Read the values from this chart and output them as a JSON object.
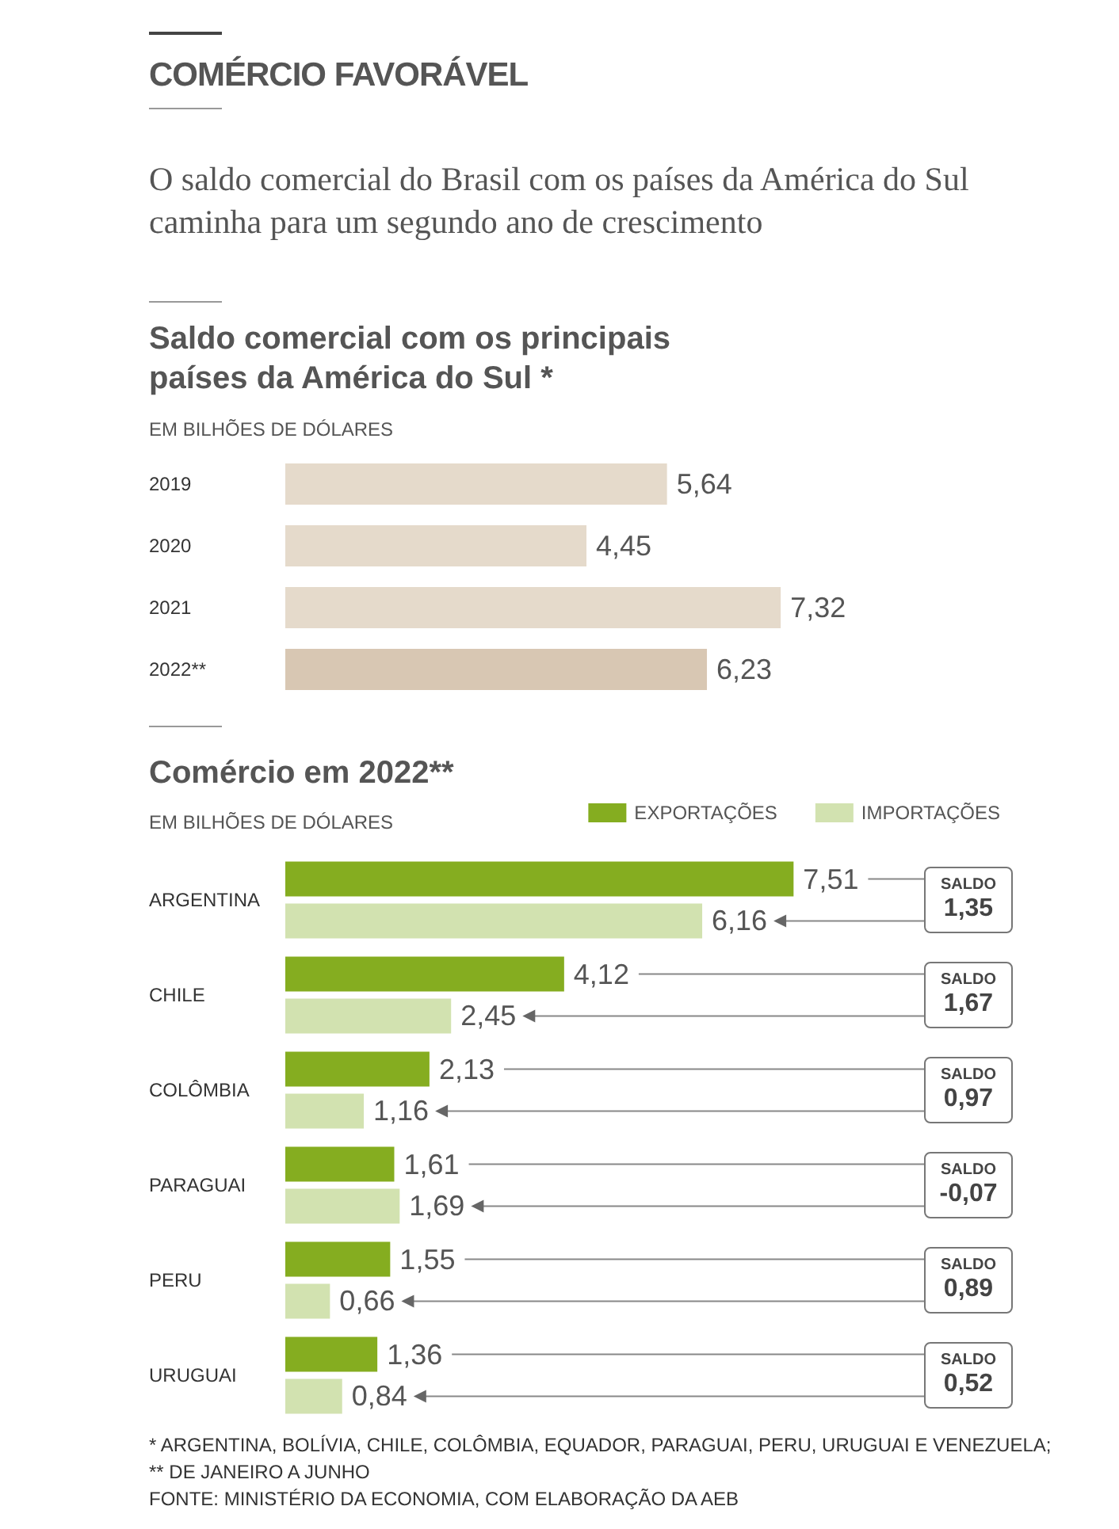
{
  "chart_data": [
    {
      "type": "other",
      "title": "COMÉRCIO FAVORÁVEL",
      "subtitle": "O saldo comercial do Brasil com os países da América do Sul caminha para um segundo ano de crescimento"
    },
    {
      "type": "bar",
      "orientation": "horizontal",
      "title": "Saldo comercial com os principais países da América do Sul *",
      "subtitle": "EM BILHÕES DE DÓLARES",
      "categories": [
        "2019",
        "2020",
        "2021",
        "2022**"
      ],
      "values": [
        5.64,
        4.45,
        7.32,
        6.23
      ],
      "colors": [
        "#e5dacb",
        "#e5dacb",
        "#e5dacb",
        "#d8c7b3"
      ],
      "value_labels": [
        "5,64",
        "4,45",
        "7,32",
        "6,23"
      ]
    },
    {
      "type": "bar",
      "orientation": "horizontal",
      "title": "Comércio em 2022**",
      "subtitle": "EM BILHÕES DE DÓLARES",
      "categories": [
        "ARGENTINA",
        "CHILE",
        "COLÔMBIA",
        "PARAGUAI",
        "PERU",
        "URUGUAI"
      ],
      "legend": "top right",
      "series": [
        {
          "name": "EXPORTAÇÕES",
          "color": "#85ad20",
          "values": [
            7.51,
            4.12,
            2.13,
            1.61,
            1.55,
            1.36
          ],
          "value_labels": [
            "7,51",
            "4,12",
            "2,13",
            "1,61",
            "1,55",
            "1,36"
          ]
        },
        {
          "name": "IMPORTAÇÕES",
          "color": "#d2e2b0",
          "values": [
            6.16,
            2.45,
            1.16,
            1.69,
            0.66,
            0.84
          ],
          "value_labels": [
            "6,16",
            "2,45",
            "1,16",
            "1,69",
            "0,66",
            "0,84"
          ]
        }
      ],
      "annotations": [
        "SALDO\n1,35",
        "SALDO\n1,67",
        "SALDO\n0,97",
        "SALDO\n-0,07",
        "SALDO\n0,89",
        "SALDO\n0,52",
        "* ARGENTINA, BOLÍVIA, CHILE, COLÔMBIA, EQUADOR, PARAGUAI, PERU, URUGUAI E VENEZUELA;",
        "** DE JANEIRO A JUNHO",
        "FONTE: MINISTÉRIO DA ECONOMIA, COM ELABORAÇÃO DA AEB"
      ]
    }
  ]
}
